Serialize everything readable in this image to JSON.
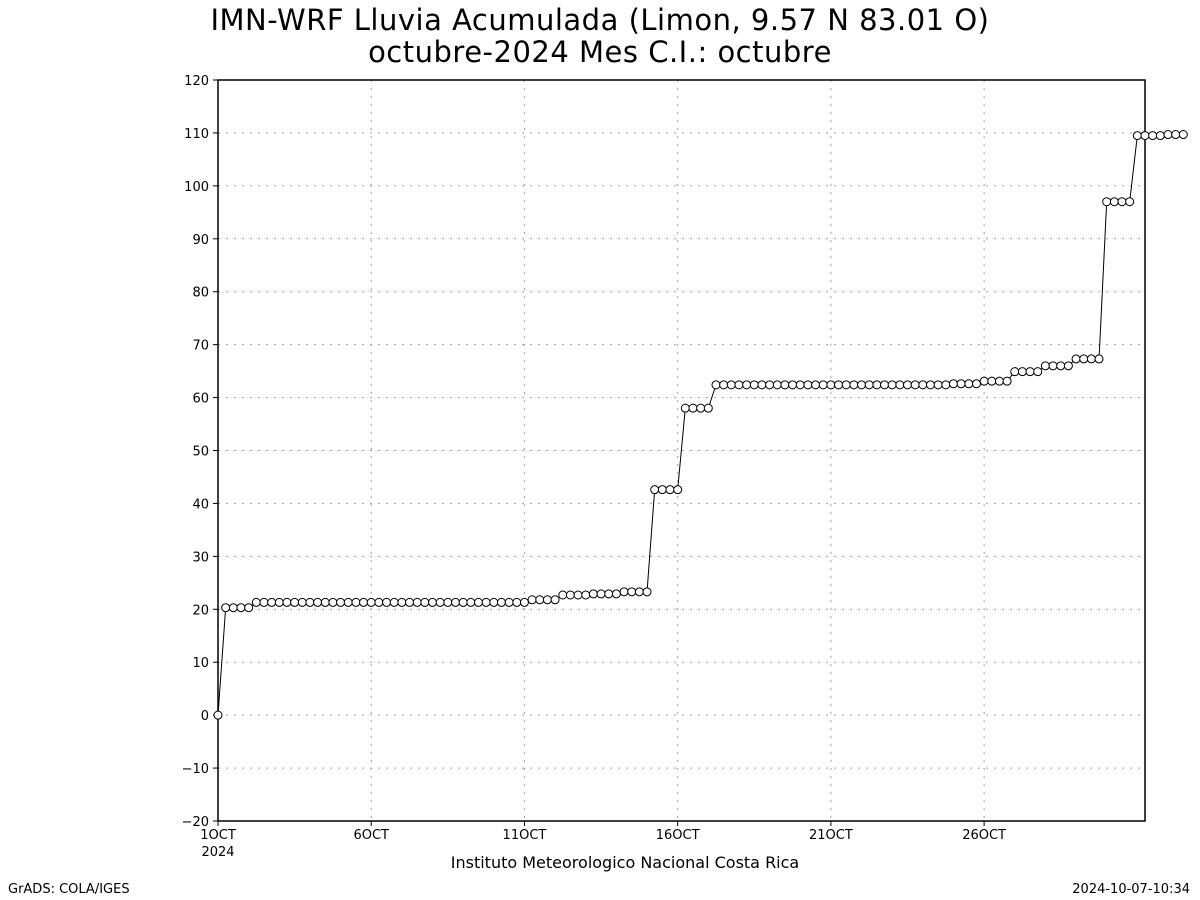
{
  "header": {
    "title_line1": "IMN-WRF  Lluvia Acumulada (Limon, 9.57  N 83.01  O)",
    "title_line2": "octubre-2024 Mes C.I.: octubre"
  },
  "footer": {
    "left": "GrADS: COLA/IGES",
    "right": "2024-10-07-10:34"
  },
  "colors": {
    "line": "#000000",
    "grid": "#a0a0a0",
    "marker_fill": "#ffffff"
  },
  "chart_data": {
    "type": "line",
    "title": "IMN-WRF  Lluvia Acumulada (Limon, 9.57  N 83.01  O)",
    "subtitle": "octubre-2024 Mes C.I.: octubre",
    "xlabel": "Instituto Meteorologico Nacional Costa Rica",
    "ylabel": "",
    "ylim": [
      -20,
      120
    ],
    "yticks": [
      -20,
      -10,
      0,
      10,
      20,
      30,
      40,
      50,
      60,
      70,
      80,
      90,
      100,
      110,
      120
    ],
    "x_unit": "day of October 2024",
    "xlim": [
      1,
      31.25
    ],
    "xticks": [
      {
        "value": 1,
        "label": "1OCT",
        "sublabel": "2024"
      },
      {
        "value": 6,
        "label": "6OCT"
      },
      {
        "value": 11,
        "label": "11OCT"
      },
      {
        "value": 16,
        "label": "16OCT"
      },
      {
        "value": 21,
        "label": "21OCT"
      },
      {
        "value": 26,
        "label": "26OCT"
      }
    ],
    "grid": true,
    "marker": "open-circle",
    "series": [
      {
        "values": [
          0,
          20.3,
          20.3,
          20.3,
          20.3,
          21.3,
          21.3,
          21.3,
          21.3,
          21.3,
          21.3,
          21.3,
          21.3,
          21.3,
          21.3,
          21.3,
          21.3,
          21.3,
          21.3,
          21.3,
          21.3,
          21.3,
          21.3,
          21.3,
          21.3,
          21.3,
          21.3,
          21.3,
          21.3,
          21.3,
          21.3,
          21.3,
          21.3,
          21.3,
          21.3,
          21.3,
          21.3,
          21.3,
          21.3,
          21.3,
          21.3,
          21.8,
          21.8,
          21.8,
          21.8,
          22.7,
          22.7,
          22.7,
          22.7,
          22.9,
          22.9,
          22.9,
          22.9,
          23.3,
          23.3,
          23.3,
          23.3,
          42.6,
          42.6,
          42.6,
          42.6,
          58.0,
          58.0,
          58.0,
          58.0,
          62.4,
          62.4,
          62.4,
          62.4,
          62.4,
          62.4,
          62.4,
          62.4,
          62.4,
          62.4,
          62.4,
          62.4,
          62.4,
          62.4,
          62.4,
          62.4,
          62.4,
          62.4,
          62.4,
          62.4,
          62.4,
          62.4,
          62.4,
          62.4,
          62.4,
          62.4,
          62.4,
          62.4,
          62.4,
          62.4,
          62.4,
          62.6,
          62.6,
          62.6,
          62.6,
          63.1,
          63.1,
          63.1,
          63.1,
          64.9,
          64.9,
          64.9,
          64.9,
          66.0,
          66.0,
          66.0,
          66.0,
          67.3,
          67.3,
          67.3,
          67.3,
          97.0,
          97.0,
          97.0,
          97.0,
          109.5,
          109.5,
          109.5,
          109.5,
          109.7,
          109.7,
          109.7
        ]
      }
    ],
    "x_start_day": 1,
    "x_step_days": 0.25
  }
}
